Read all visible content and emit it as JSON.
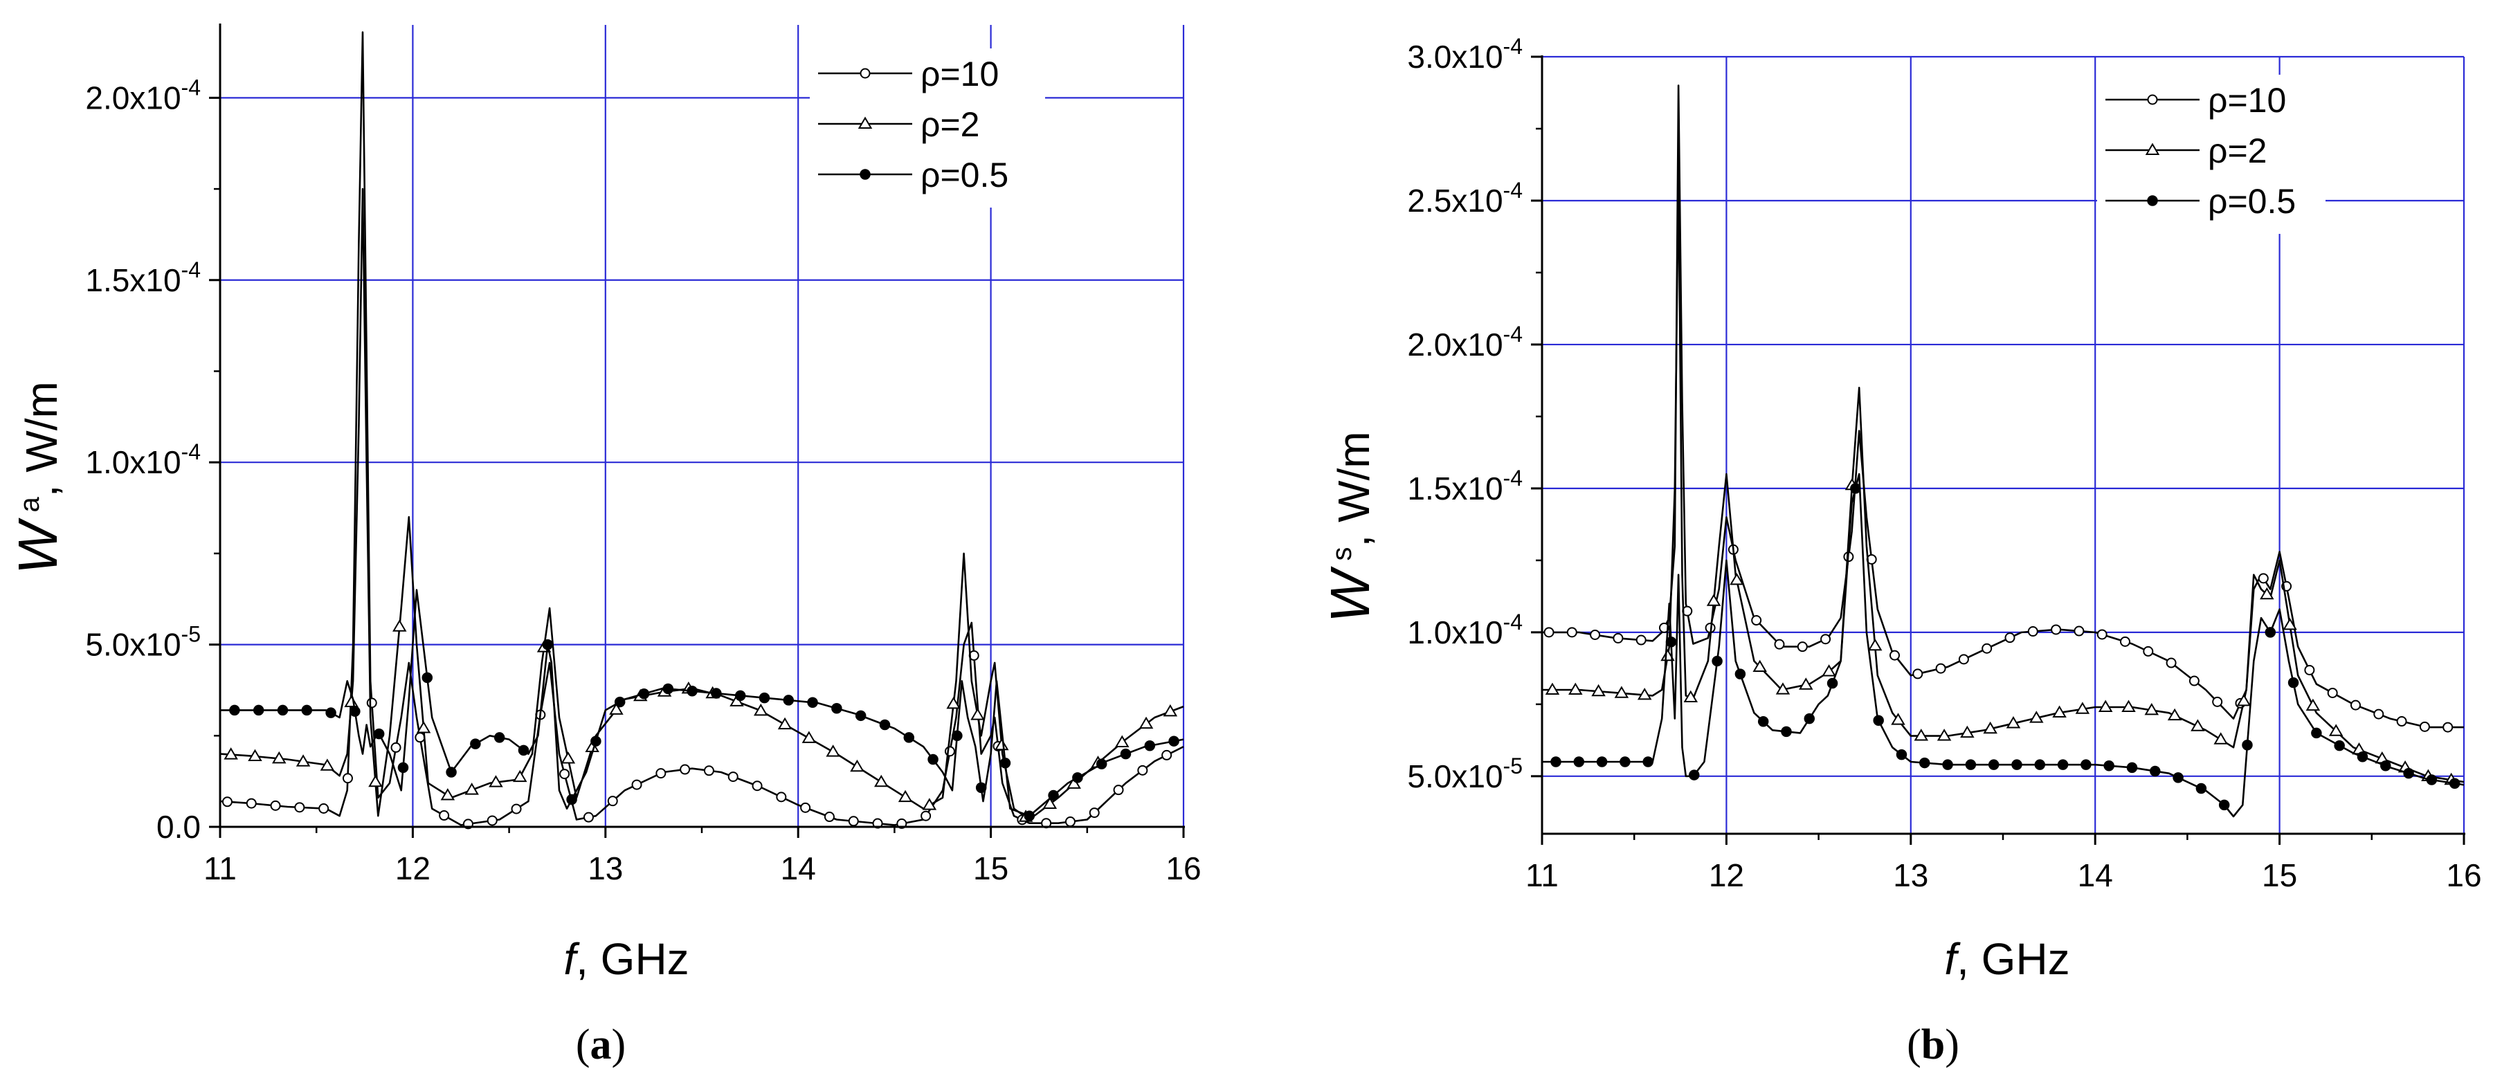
{
  "chart_data": [
    {
      "id": "a",
      "type": "line",
      "caption_open": "(",
      "caption_letter": "a",
      "caption_close": ")",
      "xlabel_italic": "f",
      "xlabel_rest": ",  GHz",
      "ylabel_italic": "W",
      "ylabel_sup": "a",
      "ylabel_rest": ",  W/m",
      "xlim": [
        11,
        16
      ],
      "ylim": [
        0,
        0.00022
      ],
      "xticks": [
        11,
        12,
        13,
        14,
        15,
        16
      ],
      "xtick_labels": [
        "11",
        "12",
        "13",
        "14",
        "15",
        "16"
      ],
      "yticks": [
        0,
        5e-05,
        0.0001,
        0.00015,
        0.0002
      ],
      "ytick_labels": [
        {
          "base": "0.0",
          "exp": ""
        },
        {
          "base": "5.0x10",
          "exp": "-5"
        },
        {
          "base": "1.0x10",
          "exp": "-4"
        },
        {
          "base": "1.5x10",
          "exp": "-4"
        },
        {
          "base": "2.0x10",
          "exp": "-4"
        }
      ],
      "grid": true,
      "legend_position": "top-right",
      "series": [
        {
          "name": "ρ=10",
          "marker": "open-circle",
          "x": [
            11.0,
            11.15,
            11.35,
            11.55,
            11.62,
            11.66,
            11.69,
            11.72,
            11.74,
            11.76,
            11.78,
            11.82,
            11.88,
            11.94,
            11.98,
            12.02,
            12.1,
            12.25,
            12.45,
            12.6,
            12.66,
            12.71,
            12.76,
            12.85,
            12.95,
            13.1,
            13.3,
            13.45,
            13.6,
            13.8,
            14.0,
            14.2,
            14.5,
            14.65,
            14.75,
            14.82,
            14.86,
            14.9,
            14.95,
            15.0,
            15.02,
            15.06,
            15.12,
            15.2,
            15.35,
            15.5,
            15.7,
            15.85,
            16.0
          ],
          "y": [
            7e-06,
            6.5e-06,
            5.5e-06,
            5e-06,
            3e-06,
            1e-05,
            5e-05,
            0.00016,
            0.000218,
            0.00013,
            4e-05,
            8e-06,
            1.2e-05,
            3e-05,
            4.5e-05,
            3e-05,
            5e-06,
            5e-07,
            2e-06,
            7e-06,
            3e-05,
            4.5e-05,
            2e-05,
            2e-06,
            3e-06,
            1e-05,
            1.5e-05,
            1.6e-05,
            1.5e-05,
            1.1e-05,
            6e-06,
            2e-06,
            5e-07,
            2e-06,
            1e-05,
            3e-05,
            5e-05,
            5.6e-05,
            2e-05,
            2.5e-05,
            3e-05,
            1.2e-05,
            3e-06,
            1e-06,
            1e-06,
            2e-06,
            1.2e-05,
            1.8e-05,
            2.2e-05
          ]
        },
        {
          "name": "ρ=2",
          "marker": "open-triangle",
          "x": [
            11.0,
            11.15,
            11.35,
            11.55,
            11.62,
            11.66,
            11.69,
            11.72,
            11.74,
            11.76,
            11.78,
            11.82,
            11.88,
            11.94,
            11.98,
            12.02,
            12.08,
            12.2,
            12.4,
            12.55,
            12.62,
            12.67,
            12.71,
            12.76,
            12.85,
            12.95,
            13.1,
            13.3,
            13.45,
            13.6,
            13.8,
            14.0,
            14.2,
            14.5,
            14.65,
            14.75,
            14.82,
            14.86,
            14.9,
            14.95,
            15.0,
            15.02,
            15.06,
            15.12,
            15.2,
            15.35,
            15.5,
            15.7,
            15.85,
            16.0
          ],
          "y": [
            2e-05,
            1.95e-05,
            1.85e-05,
            1.7e-05,
            1.4e-05,
            2e-05,
            4e-05,
            0.00011,
            0.000175,
            0.0001,
            3e-05,
            3e-06,
            2.5e-05,
            6e-05,
            8.5e-05,
            5e-05,
            1.2e-05,
            8e-06,
            1.2e-05,
            1.3e-05,
            2e-05,
            4.5e-05,
            6e-05,
            3e-05,
            8e-06,
            2.5e-05,
            3.5e-05,
            3.7e-05,
            3.8e-05,
            3.6e-05,
            3.2e-05,
            2.6e-05,
            2e-05,
            1e-05,
            5e-06,
            8e-06,
            4e-05,
            7.5e-05,
            4e-05,
            2.5e-05,
            4e-05,
            4.5e-05,
            2e-05,
            5e-06,
            2e-06,
            8e-06,
            1.5e-05,
            2.4e-05,
            3e-05,
            3.3e-05
          ]
        },
        {
          "name": "ρ=0.5",
          "marker": "filled-circle",
          "x": [
            11.0,
            11.15,
            11.35,
            11.55,
            11.62,
            11.66,
            11.69,
            11.72,
            11.74,
            11.76,
            11.78,
            11.82,
            11.88,
            11.94,
            11.98,
            12.02,
            12.1,
            12.2,
            12.3,
            12.4,
            12.5,
            12.55,
            12.6,
            12.65,
            12.7,
            12.72,
            12.76,
            12.8,
            12.9,
            13.0,
            13.1,
            13.3,
            13.5,
            13.7,
            13.9,
            14.1,
            14.3,
            14.5,
            14.65,
            14.75,
            14.8,
            14.85,
            14.88,
            14.92,
            14.96,
            15.0,
            15.03,
            15.06,
            15.1,
            15.2,
            15.4,
            15.6,
            15.8,
            16.0
          ],
          "y": [
            3.2e-05,
            3.2e-05,
            3.2e-05,
            3.2e-05,
            3e-05,
            4e-05,
            3.5e-05,
            2.5e-05,
            2e-05,
            2.8e-05,
            2.2e-05,
            2.6e-05,
            2e-05,
            1e-05,
            3.5e-05,
            6.5e-05,
            3e-05,
            1.5e-05,
            2.2e-05,
            2.5e-05,
            2.4e-05,
            2.2e-05,
            2e-05,
            2.5e-05,
            5e-05,
            4.5e-05,
            1e-05,
            5e-06,
            1.5e-05,
            3.2e-05,
            3.5e-05,
            3.8e-05,
            3.7e-05,
            3.6e-05,
            3.5e-05,
            3.4e-05,
            3.1e-05,
            2.7e-05,
            2.2e-05,
            1.5e-05,
            1e-05,
            4e-05,
            3e-05,
            2.2e-05,
            7e-06,
            2e-05,
            4e-05,
            2.5e-05,
            5e-06,
            3e-06,
            1.2e-05,
            1.8e-05,
            2.2e-05,
            2.4e-05
          ]
        }
      ]
    },
    {
      "id": "b",
      "type": "line",
      "caption_open": "(",
      "caption_letter": "b",
      "caption_close": ")",
      "xlabel_italic": "f",
      "xlabel_rest": ",  GHz",
      "ylabel_italic": "W",
      "ylabel_sup": "s",
      "ylabel_rest": ",  W/m",
      "xlim": [
        11,
        16
      ],
      "ylim": [
        3e-05,
        0.0003
      ],
      "xticks": [
        11,
        12,
        13,
        14,
        15,
        16
      ],
      "xtick_labels": [
        "11",
        "12",
        "13",
        "14",
        "15",
        "16"
      ],
      "yticks": [
        5e-05,
        0.0001,
        0.00015,
        0.0002,
        0.00025,
        0.0003
      ],
      "ytick_labels": [
        {
          "base": "5.0x10",
          "exp": "-5"
        },
        {
          "base": "1.0x10",
          "exp": "-4"
        },
        {
          "base": "1.5x10",
          "exp": "-4"
        },
        {
          "base": "2.0x10",
          "exp": "-4"
        },
        {
          "base": "2.5x10",
          "exp": "-4"
        },
        {
          "base": "3.0x10",
          "exp": "-4"
        }
      ],
      "grid": true,
      "legend_position": "top-right",
      "series": [
        {
          "name": "ρ=10",
          "marker": "open-circle",
          "x": [
            11.0,
            11.2,
            11.4,
            11.6,
            11.65,
            11.69,
            11.72,
            11.74,
            11.76,
            11.78,
            11.82,
            11.9,
            11.96,
            12.0,
            12.05,
            12.15,
            12.3,
            12.45,
            12.55,
            12.62,
            12.68,
            12.72,
            12.76,
            12.82,
            12.9,
            13.0,
            13.2,
            13.4,
            13.6,
            13.8,
            14.0,
            14.2,
            14.4,
            14.6,
            14.75,
            14.82,
            14.86,
            14.9,
            14.95,
            15.0,
            15.05,
            15.1,
            15.2,
            15.4,
            15.6,
            15.8,
            16.0
          ],
          "y": [
            0.0001,
            0.0001,
            9.8e-05,
            9.7e-05,
            0.0001,
            0.000105,
            0.00013,
            0.00029,
            0.00018,
            0.00011,
            9.6e-05,
            9.8e-05,
            0.000115,
            0.00014,
            0.000125,
            0.000105,
            9.5e-05,
            9.5e-05,
            9.8e-05,
            0.000105,
            0.000135,
            0.00017,
            0.00014,
            0.000108,
            9.3e-05,
            8.5e-05,
            8.8e-05,
            9.4e-05,
            0.0001,
            0.000101,
            0.0001,
            9.6e-05,
            9e-05,
            8e-05,
            7e-05,
            8e-05,
            0.000115,
            0.00012,
            0.000115,
            0.000128,
            0.000112,
            9.5e-05,
            8.2e-05,
            7.5e-05,
            7e-05,
            6.7e-05,
            6.7e-05
          ]
        },
        {
          "name": "ρ=2",
          "marker": "open-triangle",
          "x": [
            11.0,
            11.2,
            11.4,
            11.6,
            11.65,
            11.69,
            11.72,
            11.74,
            11.76,
            11.78,
            11.82,
            11.9,
            11.96,
            12.0,
            12.05,
            12.15,
            12.3,
            12.45,
            12.55,
            12.62,
            12.68,
            12.72,
            12.76,
            12.82,
            12.9,
            13.0,
            13.2,
            13.4,
            13.6,
            13.8,
            14.0,
            14.2,
            14.4,
            14.6,
            14.75,
            14.82,
            14.86,
            14.9,
            14.95,
            15.0,
            15.05,
            15.1,
            15.2,
            15.4,
            15.6,
            15.8,
            16.0
          ],
          "y": [
            8e-05,
            8e-05,
            7.9e-05,
            7.8e-05,
            8e-05,
            9.5e-05,
            0.00015,
            0.00026,
            0.00012,
            7.8e-05,
            7.7e-05,
            9e-05,
            0.00013,
            0.000155,
            0.00012,
            9e-05,
            8e-05,
            8.2e-05,
            8.6e-05,
            9e-05,
            0.00015,
            0.000185,
            0.00013,
            8.5e-05,
            7.2e-05,
            6.4e-05,
            6.4e-05,
            6.6e-05,
            6.9e-05,
            7.2e-05,
            7.4e-05,
            7.4e-05,
            7.2e-05,
            6.6e-05,
            6e-05,
            8e-05,
            0.00012,
            0.000115,
            0.000112,
            0.000125,
            0.000105,
            8.5e-05,
            7.2e-05,
            6e-05,
            5.5e-05,
            5e-05,
            4.8e-05
          ]
        },
        {
          "name": "ρ=0.5",
          "marker": "filled-circle",
          "x": [
            11.0,
            11.2,
            11.4,
            11.6,
            11.65,
            11.69,
            11.72,
            11.74,
            11.76,
            11.78,
            11.82,
            11.88,
            11.96,
            12.0,
            12.05,
            12.15,
            12.25,
            12.4,
            12.5,
            12.55,
            12.62,
            12.68,
            12.72,
            12.76,
            12.82,
            12.9,
            13.0,
            13.2,
            13.4,
            13.6,
            13.8,
            14.0,
            14.2,
            14.4,
            14.6,
            14.7,
            14.75,
            14.8,
            14.86,
            14.9,
            14.95,
            15.0,
            15.05,
            15.1,
            15.2,
            15.4,
            15.6,
            15.8,
            16.0
          ],
          "y": [
            5.5e-05,
            5.5e-05,
            5.5e-05,
            5.5e-05,
            7e-05,
            0.00011,
            7e-05,
            0.00012,
            6e-05,
            5e-05,
            5e-05,
            5.5e-05,
            9.5e-05,
            0.000125,
            9e-05,
            7.2e-05,
            6.6e-05,
            6.5e-05,
            7.5e-05,
            7.8e-05,
            9e-05,
            0.000145,
            0.000155,
            0.0001,
            7e-05,
            6e-05,
            5.5e-05,
            5.4e-05,
            5.4e-05,
            5.4e-05,
            5.4e-05,
            5.4e-05,
            5.3e-05,
            5.1e-05,
            4.5e-05,
            4e-05,
            3.6e-05,
            4e-05,
            9e-05,
            0.000105,
            0.0001,
            0.000108,
            9e-05,
            7.5e-05,
            6.5e-05,
            5.8e-05,
            5.3e-05,
            4.9e-05,
            4.7e-05
          ]
        }
      ]
    }
  ]
}
